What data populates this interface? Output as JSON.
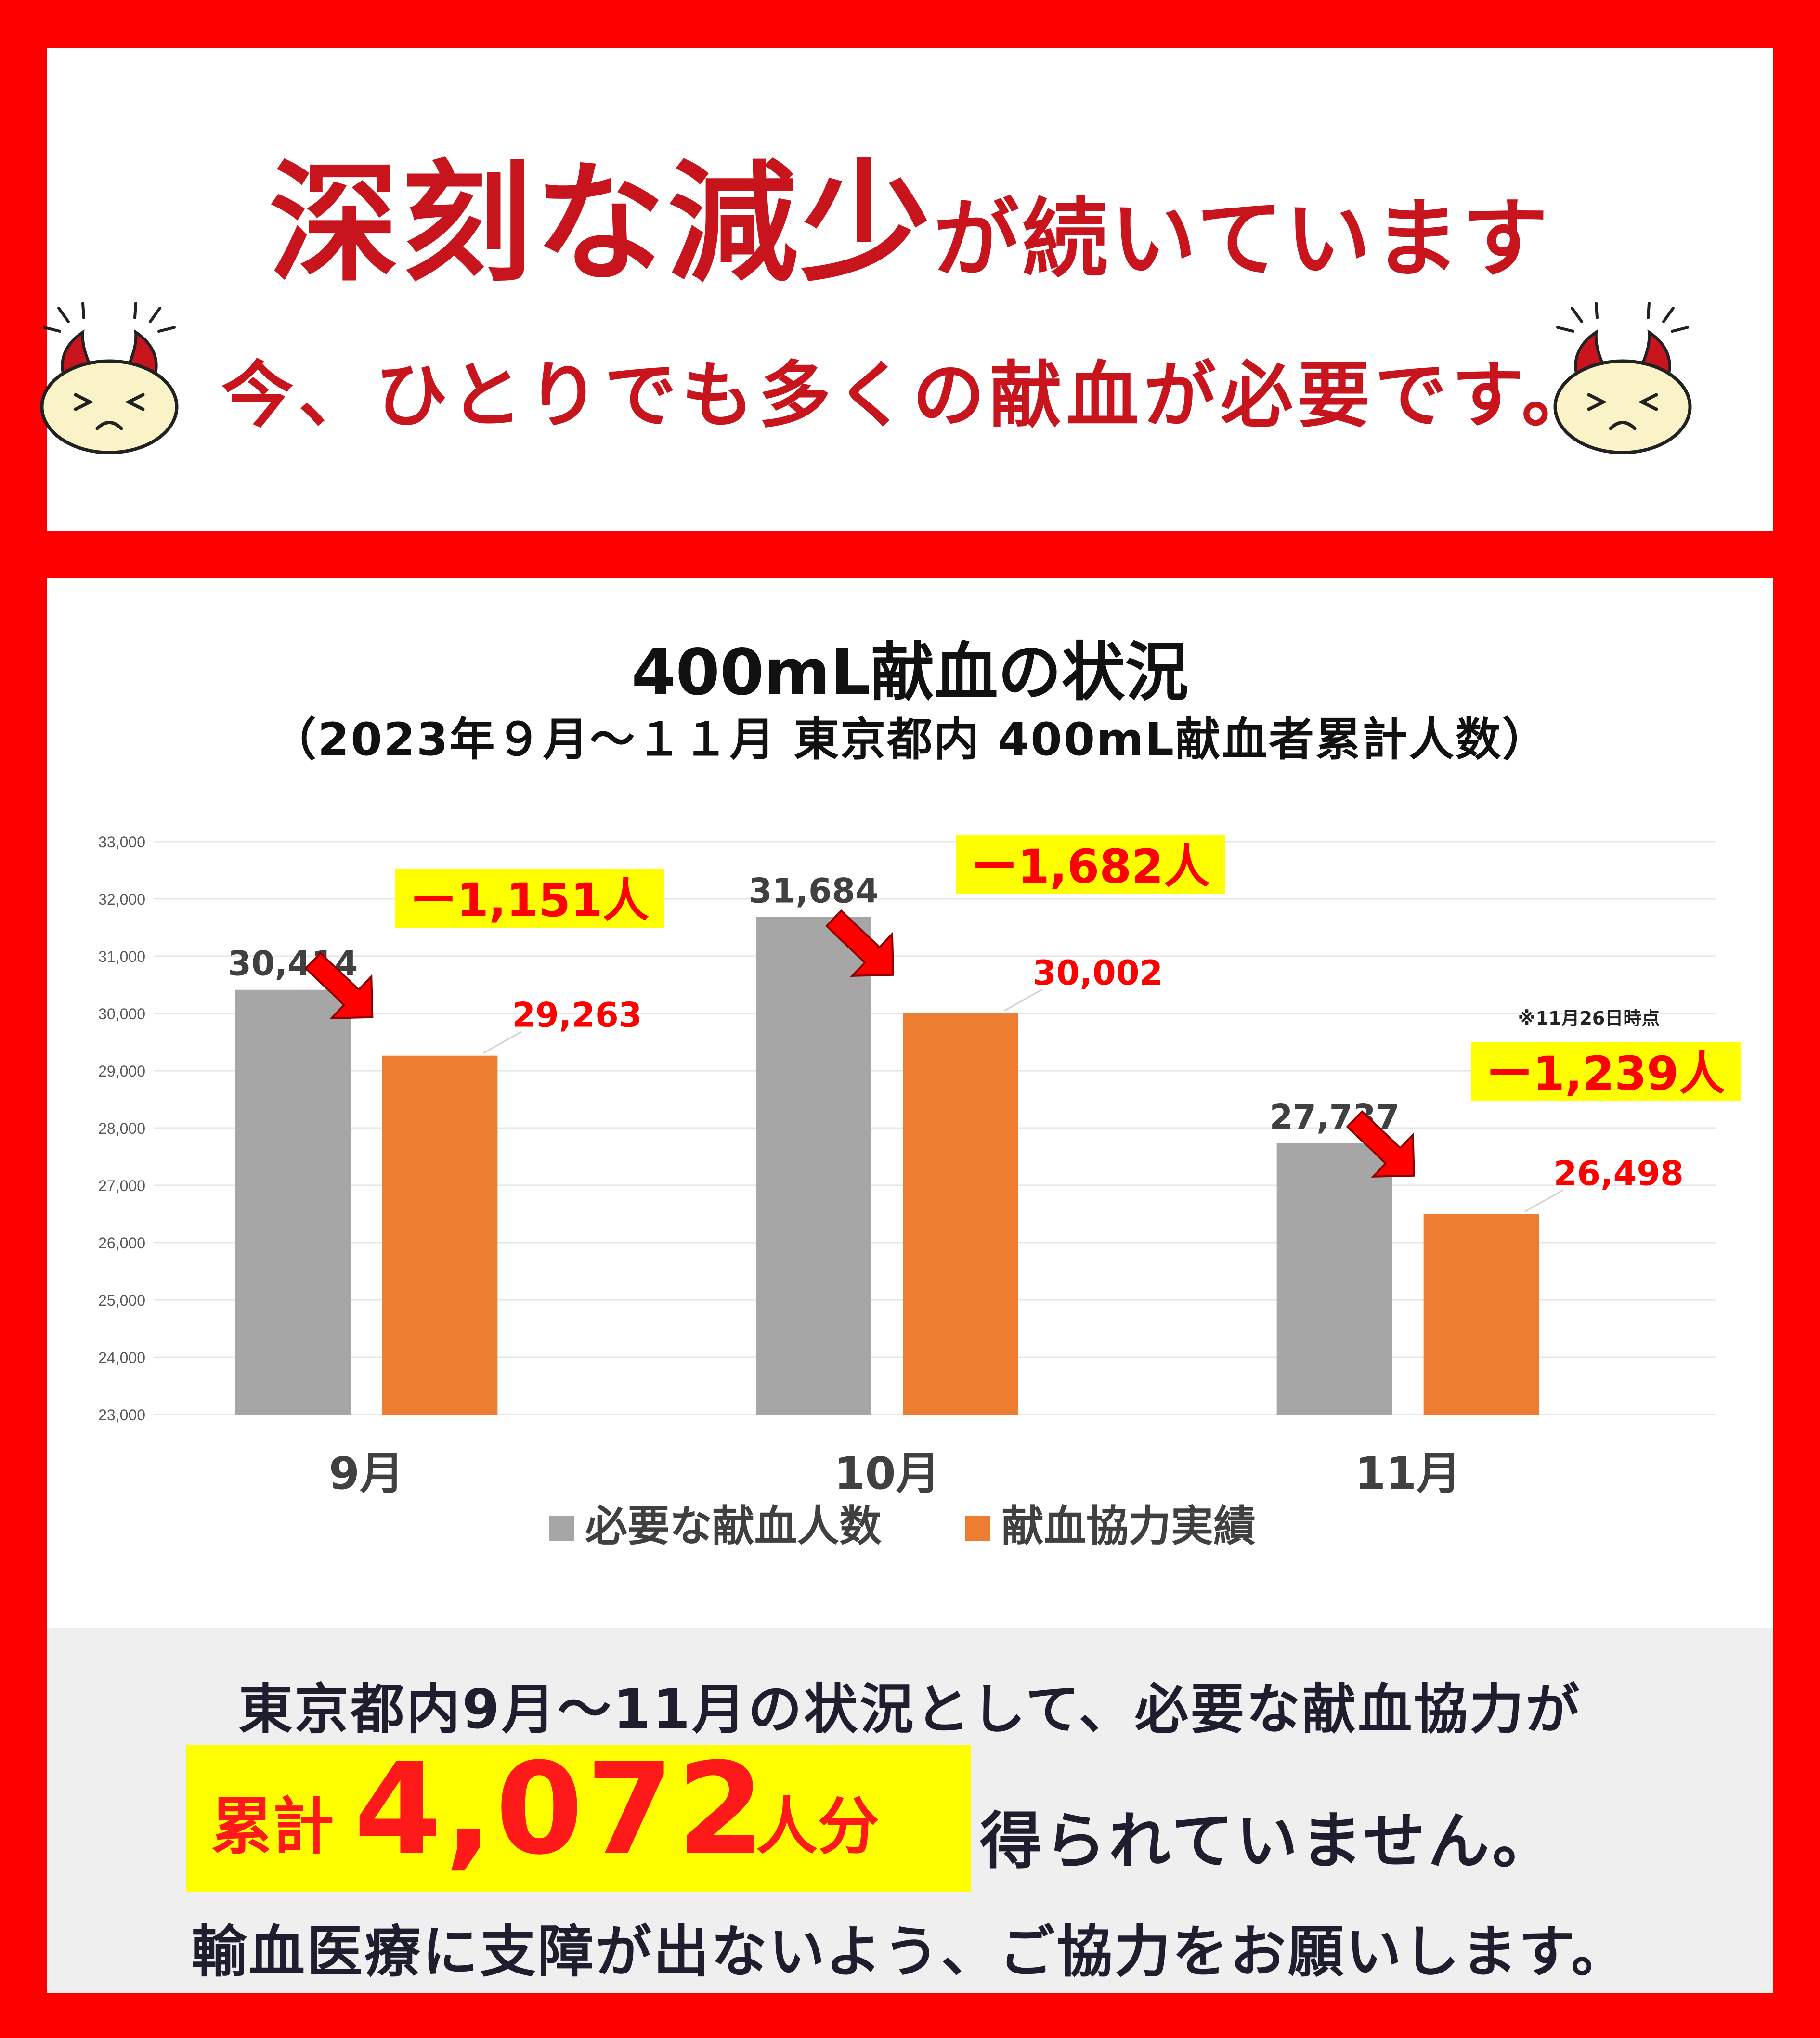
{
  "headline": {
    "main_big_1": "深刻な減少",
    "main_small": "が続いています",
    "sub": "今、ひとりでも多くの献血が必要です。"
  },
  "icons": [
    "worried-face-icon",
    "down-arrow-icon"
  ],
  "colors": {
    "background": "#ff0000",
    "headline": "#c8141c",
    "required_bar": "#a6a6a6",
    "actual_bar": "#ed7d31",
    "highlight": "#ffff00",
    "diff_text": "#ff0000"
  },
  "chart_data": {
    "type": "bar",
    "title": "400mL献血の状況",
    "subtitle": "（2023年９月～１１月 東京都内 400mL献血者累計人数）",
    "categories": [
      "9月",
      "10月",
      "11月"
    ],
    "series": [
      {
        "name": "必要な献血人数",
        "values": [
          30414,
          31684,
          27737
        ],
        "labels": [
          "30,414",
          "31,684",
          "27,737"
        ]
      },
      {
        "name": "献血協力実績",
        "values": [
          29263,
          30002,
          26498
        ],
        "labels": [
          "29,263",
          "30,002",
          "26,498"
        ]
      }
    ],
    "differences": [
      "ー1,151人",
      "ー1,682人",
      "ー1,239人"
    ],
    "note": "※11月26日時点",
    "ylim": [
      23000,
      33000
    ],
    "yticks": [
      23000,
      24000,
      25000,
      26000,
      27000,
      28000,
      29000,
      30000,
      31000,
      32000,
      33000
    ],
    "ytick_labels": [
      "23,000",
      "24,000",
      "25,000",
      "26,000",
      "27,000",
      "28,000",
      "29,000",
      "30,000",
      "31,000",
      "32,000",
      "33,000"
    ],
    "grid": true,
    "legend": "bottom"
  },
  "bottom": {
    "line1": "東京都内9月～11月の状況として、必要な献血協力が",
    "total_prefix": "累計",
    "total_value": "4,072",
    "total_unit": "人分",
    "total_suffix": "得られていません。",
    "line3": "輸血医療に支障が出ないよう、ご協力をお願いします。"
  }
}
